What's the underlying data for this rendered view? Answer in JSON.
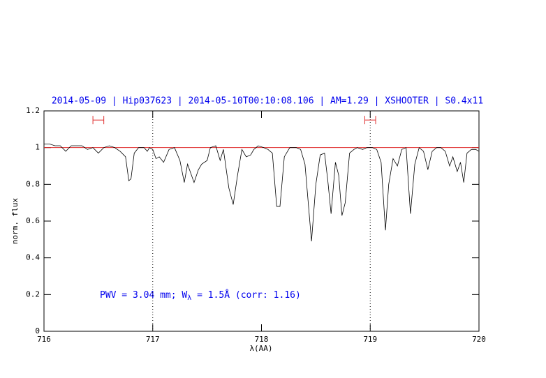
{
  "chart_data": {
    "type": "line",
    "title": "2014-05-09 | Hip037623 | 2014-05-10T00:10:08.106 | AM=1.29 | XSHOOTER | S0.4x11",
    "x_label": "λ(AA)",
    "y_label": "norm. flux",
    "annotation": [
      "PWV = 3.04 mm; W",
      "λ",
      " = 1.5Å (corr: 1.16)"
    ],
    "xlim": [
      716,
      720
    ],
    "ylim": [
      0,
      1.2
    ],
    "xticks": [
      716,
      717,
      718,
      719,
      720
    ],
    "yticks": [
      0,
      0.2,
      0.4,
      0.6,
      0.8,
      1,
      1.2
    ],
    "reference_line": {
      "y": 1,
      "color": "#e03030"
    },
    "vlines": [
      717,
      719
    ],
    "windows": {
      "color": "#e03030",
      "y": 1.15,
      "ranges": [
        [
          716.45,
          716.55
        ],
        [
          718.95,
          719.05
        ]
      ]
    },
    "series": [
      {
        "color": "#000000",
        "x": [
          716.0,
          716.05,
          716.1,
          716.15,
          716.2,
          716.25,
          716.3,
          716.35,
          716.4,
          716.45,
          716.5,
          716.55,
          716.6,
          716.65,
          716.7,
          716.75,
          716.78,
          716.8,
          716.83,
          716.87,
          716.92,
          716.95,
          716.97,
          717.0,
          717.03,
          717.06,
          717.1,
          717.15,
          717.2,
          717.25,
          717.29,
          717.32,
          717.35,
          717.38,
          717.42,
          717.45,
          717.5,
          717.53,
          717.58,
          717.62,
          717.65,
          717.7,
          717.74,
          717.78,
          717.82,
          717.86,
          717.9,
          717.93,
          717.97,
          718.02,
          718.06,
          718.1,
          718.14,
          718.17,
          718.21,
          718.26,
          718.32,
          718.36,
          718.4,
          718.46,
          718.5,
          718.54,
          718.58,
          718.61,
          718.64,
          718.68,
          718.71,
          718.74,
          718.77,
          718.81,
          718.85,
          718.88,
          718.93,
          718.97,
          719.02,
          719.06,
          719.1,
          719.14,
          719.17,
          719.21,
          719.25,
          719.29,
          719.33,
          719.37,
          719.41,
          719.45,
          719.49,
          719.53,
          719.57,
          719.61,
          719.65,
          719.69,
          719.73,
          719.76,
          719.8,
          719.83,
          719.86,
          719.89,
          719.93,
          719.97,
          720.0
        ],
        "values": [
          1.02,
          1.02,
          1.01,
          1.01,
          0.98,
          1.01,
          1.01,
          1.01,
          0.99,
          1.0,
          0.97,
          1.0,
          1.01,
          1.0,
          0.98,
          0.95,
          0.82,
          0.83,
          0.97,
          1.0,
          1.0,
          0.98,
          1.0,
          0.99,
          0.94,
          0.95,
          0.92,
          0.99,
          1.0,
          0.93,
          0.81,
          0.91,
          0.86,
          0.81,
          0.88,
          0.91,
          0.93,
          1.0,
          1.01,
          0.93,
          0.99,
          0.78,
          0.69,
          0.85,
          0.99,
          0.95,
          0.96,
          0.99,
          1.01,
          1.0,
          0.99,
          0.97,
          0.68,
          0.68,
          0.95,
          1.0,
          1.0,
          0.99,
          0.91,
          0.49,
          0.8,
          0.96,
          0.97,
          0.82,
          0.64,
          0.92,
          0.85,
          0.63,
          0.7,
          0.97,
          0.99,
          1.0,
          0.99,
          1.0,
          1.0,
          0.99,
          0.92,
          0.55,
          0.8,
          0.94,
          0.9,
          0.99,
          1.0,
          0.64,
          0.91,
          1.0,
          0.98,
          0.88,
          0.98,
          1.0,
          1.0,
          0.98,
          0.9,
          0.95,
          0.87,
          0.92,
          0.81,
          0.97,
          0.99,
          0.99,
          0.98
        ]
      }
    ]
  }
}
